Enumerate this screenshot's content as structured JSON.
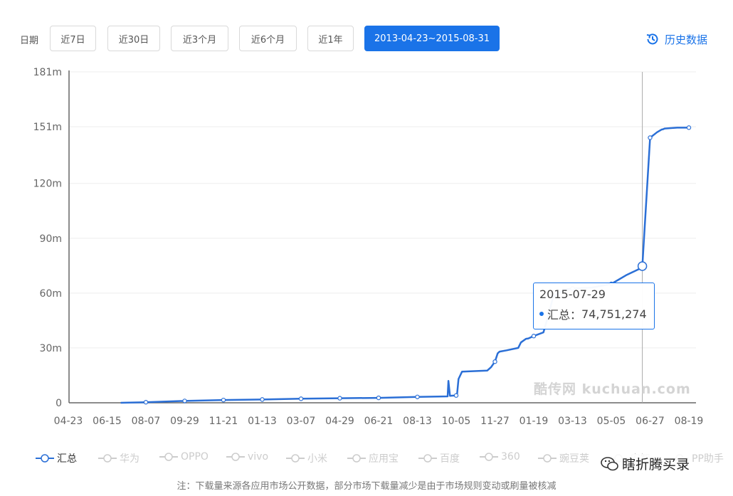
{
  "toolbar": {
    "date_label": "日期",
    "buttons": [
      "近7日",
      "近30日",
      "近3个月",
      "近6个月",
      "近1年",
      "2013-04-23~2015-08-31"
    ],
    "active_index": 5,
    "history_label": "历史数据",
    "history_icon": "history-clock-icon"
  },
  "colors": {
    "accent": "#1a73e8",
    "line": "#2b6fd6",
    "inactive": "#cccccc"
  },
  "chart_data": {
    "type": "line",
    "y_ticks": [
      "0",
      "30m",
      "60m",
      "90m",
      "120m",
      "151m",
      "181m"
    ],
    "ylim": [
      0,
      181
    ],
    "x_ticks": [
      "04-23",
      "06-15",
      "08-07",
      "09-29",
      "11-21",
      "01-13",
      "03-07",
      "04-29",
      "06-21",
      "08-13",
      "10-05",
      "11-27",
      "01-19",
      "03-13",
      "05-05",
      "06-27",
      "08-19"
    ],
    "grid": true,
    "series": [
      {
        "name": "汇总",
        "x_index": [
          1.35,
          2.0,
          3.0,
          4.0,
          5.0,
          6.0,
          7.0,
          8.0,
          9.0,
          9.78,
          9.8,
          9.84,
          10.0,
          10.02,
          10.06,
          10.15,
          10.8,
          10.9,
          11.0,
          11.07,
          11.12,
          11.3,
          11.6,
          11.67,
          11.8,
          11.86,
          12.0,
          12.25,
          12.38,
          12.5,
          12.8,
          13.0,
          13.5,
          14.0,
          14.4,
          14.7,
          14.8,
          15.0,
          15.18,
          15.3,
          15.32,
          15.38,
          15.5,
          15.7,
          16.0
        ],
        "values": [
          0,
          0.3,
          1,
          1.5,
          1.8,
          2.2,
          2.5,
          2.7,
          3.2,
          3.5,
          12,
          3.8,
          4,
          4,
          13,
          17,
          17.6,
          19.5,
          22.5,
          27,
          28,
          28.7,
          30,
          33,
          35,
          35.2,
          36.5,
          38.5,
          48,
          58,
          62,
          62.5,
          63,
          65,
          70,
          73,
          74.75,
          145,
          148,
          149.5,
          149.5,
          150,
          150.2,
          150.5,
          150.5
        ]
      }
    ],
    "tooltip": {
      "date": "2015-07-29",
      "series": "汇总",
      "value": "74,751,274"
    }
  },
  "legend": [
    "汇总",
    "华为",
    "OPPO",
    "vivo",
    "小米",
    "应用宝",
    "百度",
    "360",
    "豌豆荚",
    "安智",
    "PP助手"
  ],
  "watermark": "酷传网 kuchuan.com",
  "wechat_label": "瞎折腾买录",
  "note": "注：下载量来源各应用市场公开数据，部分市场下载量减少是由于市场规则变动或刷量被核减"
}
